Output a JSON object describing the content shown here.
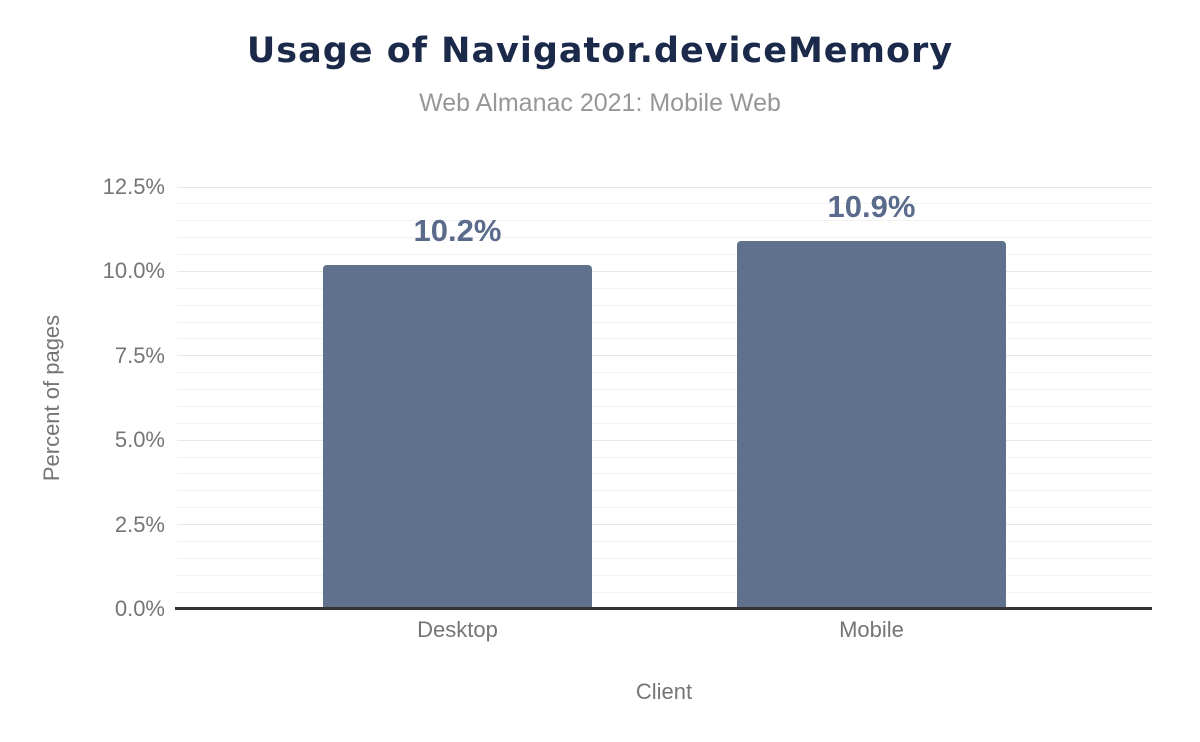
{
  "chart_data": {
    "type": "bar",
    "title": "Usage of Navigator.deviceMemory",
    "subtitle": "Web Almanac 2021: Mobile Web",
    "xlabel": "Client",
    "ylabel": "Percent of pages",
    "categories": [
      "Desktop",
      "Mobile"
    ],
    "series": [
      {
        "name": "Percent of pages",
        "values": [
          10.2,
          10.9
        ]
      }
    ],
    "data_labels": [
      "10.2%",
      "10.9%"
    ],
    "ylim": [
      0,
      12.5
    ],
    "yticks": [
      {
        "value": 0,
        "label": "0.0%"
      },
      {
        "value": 2.5,
        "label": "2.5%"
      },
      {
        "value": 5,
        "label": "5.0%"
      },
      {
        "value": 7.5,
        "label": "7.5%"
      },
      {
        "value": 10,
        "label": "10.0%"
      },
      {
        "value": 12.5,
        "label": "12.5%"
      }
    ],
    "grid": {
      "show": true,
      "major_step": 2.5,
      "minor_step": 0.5
    },
    "legend": "none",
    "colors": {
      "bar": "#5f718d",
      "data_label": "#5a6b8c",
      "title": "#1b2a4a",
      "subtitle": "#979797",
      "axis_text": "#757575",
      "grid_major": "#e6e6e6",
      "grid_minor": "#f2f2f2",
      "axis_line": "#333333",
      "background": "#ffffff"
    }
  }
}
